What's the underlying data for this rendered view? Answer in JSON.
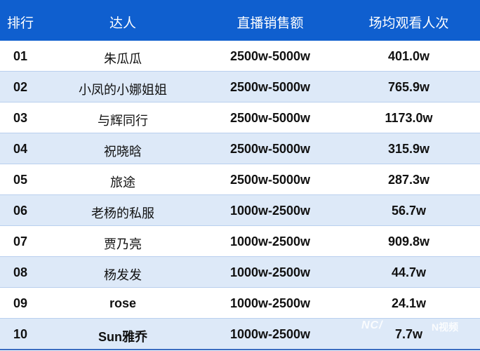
{
  "header": {
    "rank": "排行",
    "name": "达人",
    "sales": "直播销售额",
    "views": "场均观看人次"
  },
  "colors": {
    "header_bg": "#0f5fcf",
    "alt_row_bg": "#dde9f8"
  },
  "rows": [
    {
      "rank": "01",
      "name": "朱瓜瓜",
      "sales": "2500w-5000w",
      "views": "401.0w"
    },
    {
      "rank": "02",
      "name": "小凤的小娜姐姐",
      "sales": "2500w-5000w",
      "views": "765.9w"
    },
    {
      "rank": "03",
      "name": "与辉同行",
      "sales": "2500w-5000w",
      "views": "1173.0w"
    },
    {
      "rank": "04",
      "name": "祝晓晗",
      "sales": "2500w-5000w",
      "views": "315.9w"
    },
    {
      "rank": "05",
      "name": "旅途",
      "sales": "2500w-5000w",
      "views": "287.3w"
    },
    {
      "rank": "06",
      "name": "老杨的私服",
      "sales": "1000w-2500w",
      "views": "56.7w"
    },
    {
      "rank": "07",
      "name": "贾乃亮",
      "sales": "1000w-2500w",
      "views": "909.8w"
    },
    {
      "rank": "08",
      "name": "杨发发",
      "sales": "1000w-2500w",
      "views": "44.7w"
    },
    {
      "rank": "09",
      "name": "rose",
      "sales": "1000w-2500w",
      "views": "24.1w"
    },
    {
      "rank": "10",
      "name": "Sun雅乔",
      "sales": "1000w-2500w",
      "views": "7.7w"
    }
  ],
  "watermark": {
    "logo1": "NC/",
    "logo2": "N视频"
  }
}
